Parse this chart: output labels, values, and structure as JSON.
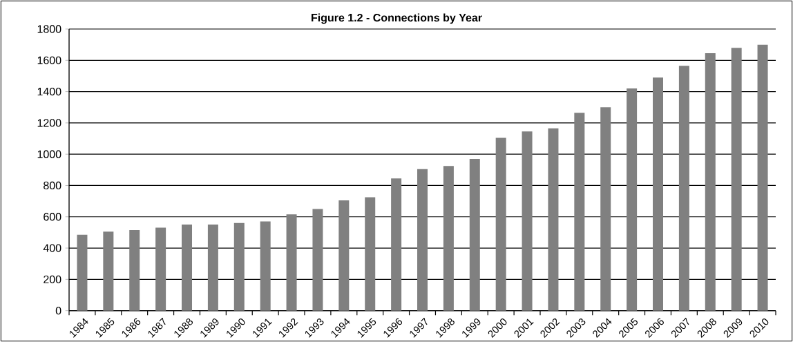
{
  "chart_data": {
    "type": "bar",
    "title": "Figure 1.2 - Connections  by  Year",
    "categories": [
      "1984",
      "1985",
      "1986",
      "1987",
      "1988",
      "1989",
      "1990",
      "1991",
      "1992",
      "1993",
      "1994",
      "1995",
      "1996",
      "1997",
      "1998",
      "1999",
      "2000",
      "2001",
      "2002",
      "2003",
      "2004",
      "2005",
      "2006",
      "2007",
      "2008",
      "2009",
      "2010"
    ],
    "values": [
      485,
      505,
      515,
      530,
      550,
      550,
      560,
      570,
      615,
      650,
      705,
      725,
      845,
      905,
      925,
      970,
      1105,
      1145,
      1165,
      1265,
      1300,
      1420,
      1490,
      1565,
      1645,
      1680,
      1700
    ],
    "color": "#808080",
    "ylim": [
      0,
      1800
    ],
    "yticks": [
      0,
      200,
      400,
      600,
      800,
      1000,
      1200,
      1400,
      1600,
      1800
    ],
    "grid": "y"
  }
}
